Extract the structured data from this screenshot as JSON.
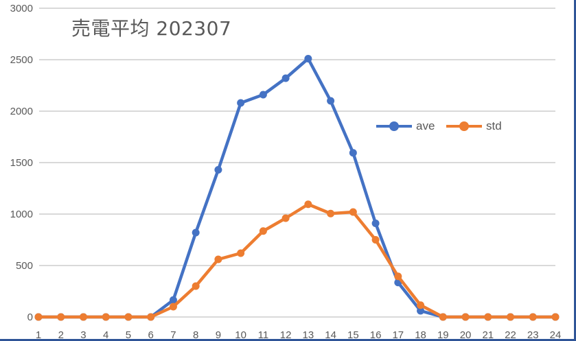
{
  "chart_data": {
    "type": "line",
    "title": "売電平均 202307",
    "xlabel": "",
    "ylabel": "",
    "x": [
      "1",
      "2",
      "3",
      "4",
      "5",
      "6",
      "7",
      "8",
      "9",
      "10",
      "11",
      "12",
      "13",
      "14",
      "15",
      "16",
      "17",
      "18",
      "19",
      "20",
      "21",
      "22",
      "23",
      "24"
    ],
    "series": [
      {
        "name": "ave",
        "color": "#4472c4",
        "values": [
          0,
          0,
          0,
          0,
          0,
          0,
          165,
          820,
          1430,
          2080,
          2160,
          2320,
          2510,
          2100,
          1595,
          910,
          335,
          60,
          0,
          0,
          0,
          0,
          0,
          0
        ]
      },
      {
        "name": "std",
        "color": "#ed7d31",
        "values": [
          0,
          0,
          0,
          0,
          0,
          0,
          100,
          300,
          560,
          620,
          835,
          960,
          1095,
          1005,
          1020,
          750,
          395,
          115,
          0,
          0,
          0,
          0,
          0,
          0
        ]
      }
    ],
    "ylim": [
      0,
      3000
    ],
    "yticks": [
      0,
      500,
      1000,
      1500,
      2000,
      2500,
      3000
    ],
    "grid": true,
    "legend_position": "inside-right"
  },
  "legend": {
    "items": [
      {
        "label": "ave",
        "color": "#4472c4"
      },
      {
        "label": "std",
        "color": "#ed7d31"
      }
    ]
  }
}
